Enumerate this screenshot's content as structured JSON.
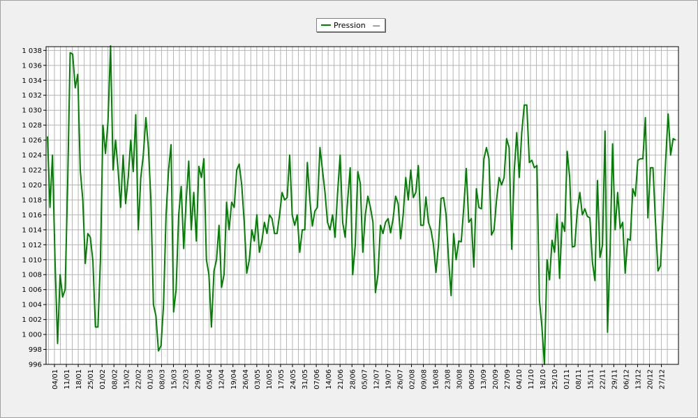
{
  "chart_data": {
    "type": "line",
    "title": "",
    "xlabel": "",
    "ylabel": "",
    "ylim": [
      996,
      1038.5
    ],
    "grid": true,
    "legend_position": "top-center",
    "colors": {
      "series": "#008000",
      "grid": "#b4b4b4",
      "plot_bg": "#ffffff"
    },
    "y_ticks": [
      "996",
      "998",
      "1 000",
      "1 002",
      "1 004",
      "1 006",
      "1 008",
      "1 010",
      "1 012",
      "1 014",
      "1 016",
      "1 018",
      "1 020",
      "1 022",
      "1 024",
      "1 026",
      "1 028",
      "1 030",
      "1 032",
      "1 034",
      "1 036",
      "1 038"
    ],
    "x_ticks": [
      "04/01",
      "11/01",
      "18/01",
      "25/01",
      "01/02",
      "08/02",
      "15/02",
      "22/02",
      "01/03",
      "08/03",
      "15/03",
      "22/03",
      "29/03",
      "05/04",
      "12/04",
      "19/04",
      "26/04",
      "03/05",
      "10/05",
      "17/05",
      "24/05",
      "31/05",
      "07/06",
      "14/06",
      "21/06",
      "28/06",
      "05/07",
      "12/07",
      "19/07",
      "26/07",
      "02/08",
      "09/08",
      "16/08",
      "23/08",
      "30/08",
      "06/09",
      "13/09",
      "20/09",
      "27/09",
      "04/10",
      "11/10",
      "18/10",
      "25/10",
      "01/11",
      "08/11",
      "15/11",
      "22/11",
      "29/11",
      "06/12",
      "13/12",
      "20/12",
      "27/12"
    ],
    "series": [
      {
        "name": "Pression",
        "legend_suffix": "—",
        "values": [
          1026.5,
          1017,
          1024,
          1010,
          998.8,
          1008,
          1005,
          1006,
          1020,
          1037.7,
          1037.5,
          1033,
          1034.8,
          1022,
          1018,
          1009.5,
          1013.5,
          1013,
          1009.8,
          1001,
          1001,
          1010,
          1028,
          1024.2,
          1028.5,
          1038.6,
          1022,
          1026,
          1022,
          1017,
          1024,
          1017.5,
          1021,
          1026,
          1021.8,
          1029.4,
          1014,
          1021,
          1024,
          1029,
          1025,
          1018,
          1004,
          1002.5,
          997.8,
          998.5,
          1004,
          1016,
          1022,
          1025.4,
          1003,
          1006,
          1016,
          1019.8,
          1011.5,
          1018,
          1023.2,
          1014,
          1019,
          1012.5,
          1022.5,
          1021,
          1023.5,
          1010,
          1008,
          1001,
          1008.5,
          1010,
          1014.6,
          1006.3,
          1008,
          1017.7,
          1014,
          1017.7,
          1017,
          1022,
          1022.8,
          1020,
          1015,
          1008.2,
          1010,
          1014,
          1012.5,
          1016,
          1011,
          1012.5,
          1015,
          1013.5,
          1016,
          1015.5,
          1013.5,
          1013.5,
          1016,
          1019,
          1018,
          1018.3,
          1024,
          1016,
          1014.6,
          1016,
          1011,
          1014,
          1014,
          1023,
          1018,
          1014.5,
          1016.5,
          1017,
          1025,
          1022,
          1019,
          1015,
          1014,
          1016,
          1013,
          1019,
          1024,
          1015,
          1013,
          1018,
          1022.3,
          1008,
          1012,
          1021.8,
          1020.2,
          1011,
          1016,
          1018.5,
          1017,
          1015,
          1005.6,
          1008,
          1014.6,
          1013.5,
          1015,
          1015.5,
          1013.6,
          1015.5,
          1018.5,
          1017.5,
          1012.8,
          1016,
          1021,
          1018,
          1022,
          1018.3,
          1019,
          1022.6,
          1014.6,
          1014.6,
          1018.4,
          1015,
          1014,
          1012,
          1008.3,
          1012,
          1018.2,
          1018.3,
          1016,
          1010,
          1005.2,
          1013.5,
          1010,
          1012.5,
          1012.4,
          1017,
          1022.2,
          1015,
          1015.5,
          1009,
          1019.5,
          1017,
          1016.8,
          1023.5,
          1025,
          1023.5,
          1013.3,
          1014,
          1018,
          1021,
          1020,
          1021,
          1026.2,
          1025,
          1011.4,
          1021.8,
          1027,
          1021,
          1027,
          1030.7,
          1030.7,
          1023,
          1023.3,
          1022.3,
          1022.6,
          1004.6,
          1001,
          996,
          1010,
          1007.3,
          1012.6,
          1011,
          1016.1,
          1007.5,
          1015,
          1013.8,
          1024.5,
          1021,
          1011.7,
          1011.8,
          1016.5,
          1019,
          1016,
          1016.8,
          1015.8,
          1015.6,
          1009.7,
          1007.2,
          1020.6,
          1010.3,
          1012,
          1027.2,
          1000.3,
          1011,
          1025.5,
          1014,
          1019,
          1014.2,
          1015,
          1008.2,
          1012.8,
          1012.6,
          1019.5,
          1018.5,
          1023.3,
          1023.5,
          1023.5,
          1029,
          1015.6,
          1022.3,
          1022.3,
          1015,
          1008.5,
          1009.2,
          1016,
          1023,
          1029.5,
          1024,
          1026.2,
          1026
        ]
      }
    ]
  }
}
